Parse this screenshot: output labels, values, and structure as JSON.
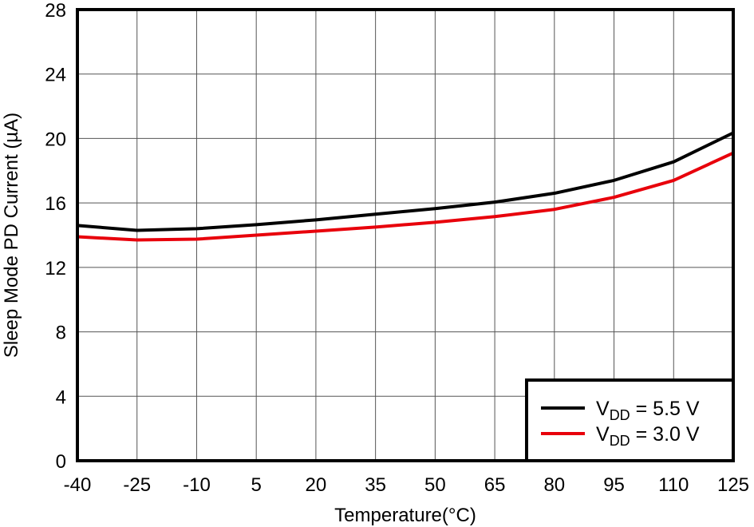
{
  "chart_data": {
    "type": "line",
    "xlabel": "Temperature(°C)",
    "ylabel": "Sleep Mode PD Current (µA)",
    "xlim": [
      -40,
      125
    ],
    "ylim": [
      0,
      28
    ],
    "x_ticks": [
      -40,
      -25,
      -10,
      5,
      20,
      35,
      50,
      65,
      80,
      95,
      110,
      125
    ],
    "y_ticks": [
      0,
      4,
      8,
      12,
      16,
      20,
      24,
      28
    ],
    "grid": true,
    "legend_position": "bottom-right",
    "x": [
      -40,
      -25,
      -10,
      5,
      20,
      35,
      50,
      65,
      80,
      95,
      110,
      125
    ],
    "series": [
      {
        "name": "VDD = 5.5 V",
        "label_main": "V",
        "label_sub": "DD",
        "label_rest": " = 5.5 V",
        "color": "#000000",
        "values": [
          14.6,
          14.3,
          14.4,
          14.65,
          14.95,
          15.3,
          15.65,
          16.05,
          16.6,
          17.4,
          18.55,
          20.35
        ]
      },
      {
        "name": "VDD = 3.0 V",
        "label_main": "V",
        "label_sub": "DD",
        "label_rest": " = 3.0 V",
        "color": "#e8000b",
        "values": [
          13.9,
          13.7,
          13.75,
          14.0,
          14.25,
          14.5,
          14.8,
          15.15,
          15.6,
          16.35,
          17.4,
          19.1
        ]
      }
    ]
  }
}
